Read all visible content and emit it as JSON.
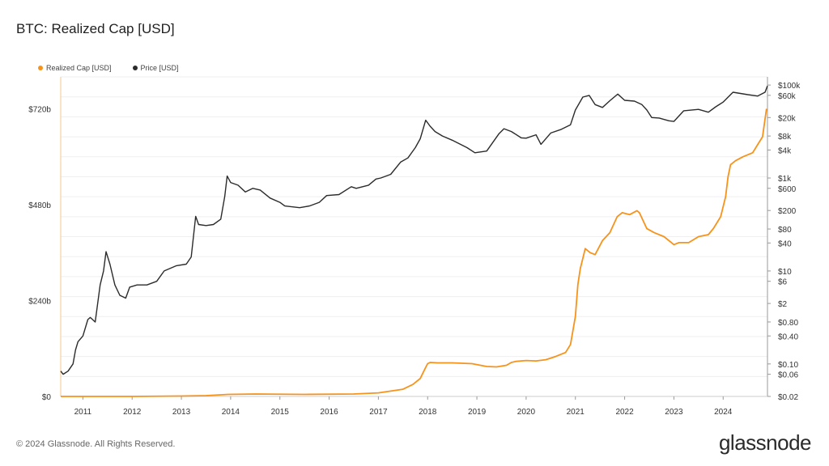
{
  "header": {
    "title": "BTC: Realized Cap [USD]"
  },
  "footer": {
    "copyright": "© 2024 Glassnode. All Rights Reserved.",
    "brand": "glassnode"
  },
  "legend": [
    {
      "label": "Realized Cap [USD]",
      "color": "#f7931a"
    },
    {
      "label": "Price [USD]",
      "color": "#2b2b2b"
    }
  ],
  "chart_data": {
    "type": "line",
    "title": "BTC: Realized Cap [USD]",
    "grid": true,
    "legend_position": "top-left",
    "x_range": [
      2010.55,
      2024.9
    ],
    "x_ticks": [
      "2011",
      "2012",
      "2013",
      "2014",
      "2015",
      "2016",
      "2017",
      "2018",
      "2019",
      "2020",
      "2021",
      "2022",
      "2023",
      "2024"
    ],
    "y_left": {
      "label": "",
      "range": [
        0,
        800000000000
      ],
      "ticks": [
        {
          "value": 0,
          "label": "$0"
        },
        {
          "value": 240000000000,
          "label": "$240b"
        },
        {
          "value": 480000000000,
          "label": "$480b"
        },
        {
          "value": 720000000000,
          "label": "$720b"
        }
      ]
    },
    "y_right": {
      "label": "",
      "scale": "log",
      "range": [
        0.02,
        150000
      ],
      "ticks": [
        {
          "value": 100000,
          "label": "$100k"
        },
        {
          "value": 60000,
          "label": "$60k"
        },
        {
          "value": 20000,
          "label": "$20k"
        },
        {
          "value": 8000,
          "label": "$8k"
        },
        {
          "value": 4000,
          "label": "$4k"
        },
        {
          "value": 1000,
          "label": "$1k"
        },
        {
          "value": 600,
          "label": "$600"
        },
        {
          "value": 200,
          "label": "$200"
        },
        {
          "value": 80,
          "label": "$80"
        },
        {
          "value": 40,
          "label": "$40"
        },
        {
          "value": 10,
          "label": "$10"
        },
        {
          "value": 6,
          "label": "$6"
        },
        {
          "value": 2,
          "label": "$2"
        },
        {
          "value": 0.8,
          "label": "$0.80"
        },
        {
          "value": 0.4,
          "label": "$0.40"
        },
        {
          "value": 0.1,
          "label": "$0.10"
        },
        {
          "value": 0.06,
          "label": "$0.06"
        },
        {
          "value": 0.02,
          "label": "$0.02"
        }
      ]
    },
    "series": [
      {
        "name": "Realized Cap [USD]",
        "axis": "left",
        "color": "#f7931a",
        "x": [
          2010.55,
          2012.0,
          2013.0,
          2013.5,
          2013.95,
          2014.5,
          2015.5,
          2016.5,
          2017.0,
          2017.5,
          2017.7,
          2017.85,
          2017.95,
          2018.0,
          2018.05,
          2018.2,
          2018.5,
          2018.9,
          2019.2,
          2019.4,
          2019.6,
          2019.7,
          2019.8,
          2020.0,
          2020.2,
          2020.4,
          2020.6,
          2020.8,
          2020.9,
          2021.0,
          2021.05,
          2021.1,
          2021.2,
          2021.3,
          2021.4,
          2021.55,
          2021.7,
          2021.85,
          2021.95,
          2022.1,
          2022.25,
          2022.3,
          2022.45,
          2022.6,
          2022.8,
          2022.95,
          2023.0,
          2023.1,
          2023.3,
          2023.5,
          2023.7,
          2023.8,
          2023.95,
          2024.05,
          2024.1,
          2024.15,
          2024.25,
          2024.4,
          2024.6,
          2024.7,
          2024.8,
          2024.88
        ],
        "values": [
          0,
          0,
          1000000000,
          2000000000,
          5000000000,
          6000000000,
          5000000000,
          6000000000,
          9000000000,
          18000000000,
          30000000000,
          45000000000,
          70000000000,
          82000000000,
          85000000000,
          84000000000,
          84000000000,
          82000000000,
          75000000000,
          74000000000,
          78000000000,
          85000000000,
          88000000000,
          90000000000,
          89000000000,
          92000000000,
          100000000000,
          110000000000,
          130000000000,
          200000000000,
          280000000000,
          320000000000,
          370000000000,
          360000000000,
          355000000000,
          390000000000,
          410000000000,
          450000000000,
          460000000000,
          455000000000,
          465000000000,
          460000000000,
          420000000000,
          410000000000,
          400000000000,
          385000000000,
          380000000000,
          385000000000,
          385000000000,
          400000000000,
          405000000000,
          420000000000,
          450000000000,
          500000000000,
          550000000000,
          580000000000,
          590000000000,
          600000000000,
          610000000000,
          630000000000,
          650000000000,
          720000000000
        ]
      },
      {
        "name": "Price [USD]",
        "axis": "right",
        "color": "#2b2b2b",
        "x": [
          2010.55,
          2010.6,
          2010.7,
          2010.8,
          2010.85,
          2010.9,
          2011.0,
          2011.1,
          2011.15,
          2011.25,
          2011.35,
          2011.42,
          2011.47,
          2011.55,
          2011.65,
          2011.75,
          2011.87,
          2011.95,
          2012.1,
          2012.3,
          2012.5,
          2012.65,
          2012.9,
          2013.1,
          2013.2,
          2013.29,
          2013.35,
          2013.5,
          2013.65,
          2013.8,
          2013.88,
          2013.93,
          2014.0,
          2014.15,
          2014.3,
          2014.45,
          2014.6,
          2014.8,
          2015.0,
          2015.1,
          2015.4,
          2015.6,
          2015.8,
          2015.95,
          2016.2,
          2016.45,
          2016.55,
          2016.8,
          2016.95,
          2017.05,
          2017.25,
          2017.45,
          2017.6,
          2017.75,
          2017.85,
          2017.96,
          2018.05,
          2018.15,
          2018.3,
          2018.5,
          2018.8,
          2018.96,
          2019.2,
          2019.45,
          2019.55,
          2019.7,
          2019.9,
          2020.0,
          2020.2,
          2020.3,
          2020.5,
          2020.7,
          2020.9,
          2021.0,
          2021.15,
          2021.28,
          2021.4,
          2021.55,
          2021.7,
          2021.86,
          2022.0,
          2022.2,
          2022.35,
          2022.45,
          2022.55,
          2022.7,
          2022.9,
          2023.0,
          2023.2,
          2023.5,
          2023.7,
          2023.85,
          2024.0,
          2024.2,
          2024.5,
          2024.7,
          2024.85,
          2024.9
        ],
        "values": [
          0.07,
          0.06,
          0.07,
          0.1,
          0.2,
          0.3,
          0.4,
          0.9,
          1.0,
          0.8,
          5,
          10,
          26,
          14,
          5,
          3,
          2.6,
          4.5,
          5,
          5,
          6,
          10,
          13,
          14,
          20,
          150,
          100,
          95,
          100,
          130,
          400,
          1100,
          800,
          700,
          500,
          600,
          550,
          370,
          300,
          250,
          230,
          250,
          300,
          420,
          440,
          650,
          600,
          700,
          950,
          1000,
          1200,
          2200,
          2700,
          4500,
          7000,
          17500,
          13000,
          10000,
          8000,
          6500,
          4500,
          3500,
          3800,
          9000,
          11500,
          10000,
          7300,
          7200,
          8500,
          5300,
          9300,
          11000,
          14000,
          29000,
          55000,
          60000,
          38000,
          33000,
          46000,
          64000,
          47000,
          45000,
          38000,
          29000,
          20000,
          19500,
          17000,
          16500,
          28000,
          30000,
          26000,
          34000,
          43000,
          70000,
          62000,
          58000,
          70000,
          96000
        ]
      }
    ]
  }
}
